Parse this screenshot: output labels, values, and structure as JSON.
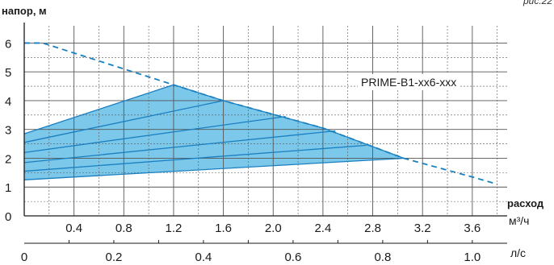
{
  "chart_data": {
    "type": "line",
    "ylabel": "напор, м",
    "xlabel": "расход",
    "x_unit_primary": "м³/ч",
    "x_unit_secondary": "л/с",
    "series_label": "PRIME-B1-xx6-xxx",
    "corner_text": "рис.22",
    "ylim": [
      0,
      6.6
    ],
    "xlim_m3h": [
      0,
      3.88
    ],
    "y_ticks": [
      0,
      1,
      2,
      3,
      4,
      5,
      6
    ],
    "x_ticks_m3h": [
      0.4,
      0.8,
      1.2,
      1.6,
      2.0,
      2.4,
      2.8,
      3.2,
      3.6
    ],
    "x_ticks_ls": [
      0,
      0.2,
      0.4,
      0.6,
      0.8,
      1.0
    ],
    "grid": true,
    "dashed_curve": [
      [
        0,
        6.0
      ],
      [
        0.15,
        6.0
      ],
      [
        1.2,
        4.55
      ],
      [
        1.6,
        4.0
      ],
      [
        2.4,
        3.05
      ],
      [
        3.05,
        2.0
      ],
      [
        3.6,
        1.35
      ],
      [
        3.8,
        1.1
      ]
    ],
    "region_polygon": [
      [
        0,
        1.25
      ],
      [
        3.05,
        2.0
      ],
      [
        2.4,
        3.05
      ],
      [
        1.6,
        4.0
      ],
      [
        1.2,
        4.55
      ],
      [
        0,
        2.85
      ]
    ],
    "speed_lines": [
      {
        "start": [
          0,
          1.25
        ],
        "end": [
          3.05,
          2.0
        ]
      },
      {
        "start": [
          0,
          1.55
        ],
        "end": [
          2.75,
          2.45
        ]
      },
      {
        "start": [
          0,
          1.85
        ],
        "end": [
          2.5,
          2.95
        ]
      },
      {
        "start": [
          0,
          2.2
        ],
        "end": [
          2.1,
          3.45
        ]
      },
      {
        "start": [
          0,
          2.55
        ],
        "end": [
          1.6,
          4.0
        ]
      },
      {
        "start": [
          0,
          2.85
        ],
        "end": [
          1.2,
          4.55
        ]
      }
    ],
    "colors": {
      "fill": "#7cc8ea",
      "line": "#1a7fc0",
      "dashed": "#1a7fc0",
      "axis": "#1a1a1a",
      "grid": "#555555"
    }
  }
}
